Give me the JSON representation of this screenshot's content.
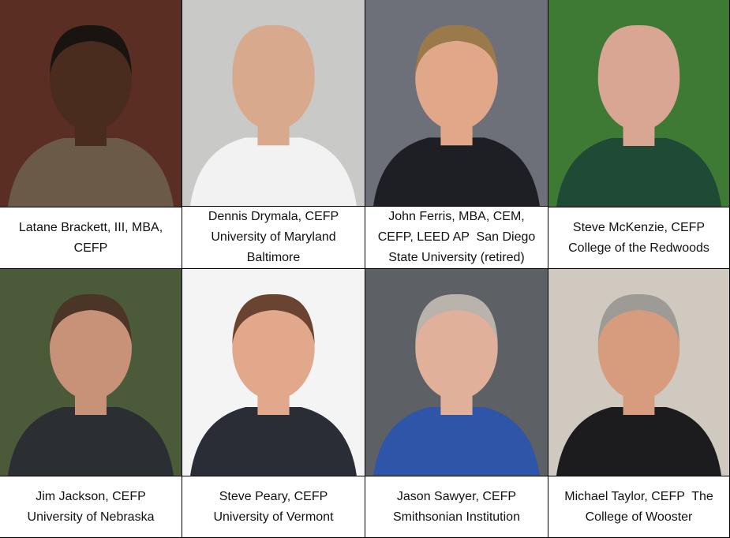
{
  "people": [
    {
      "caption": [
        "Latane Brackett, III, MBA,",
        "CEFP"
      ]
    },
    {
      "caption": [
        "Dennis Drymala, CEFP",
        "University of Maryland",
        "Baltimore"
      ]
    },
    {
      "caption": [
        "John Ferris, MBA, CEM,",
        "CEFP, LEED AP  San Diego",
        "State University (retired)"
      ]
    },
    {
      "caption": [
        "Steve McKenzie, CEFP",
        "College of the Redwoods"
      ]
    },
    {
      "caption": [
        "Jim Jackson, CEFP",
        "University of Nebraska"
      ]
    },
    {
      "caption": [
        "Steve Peary, CEFP",
        "University of Vermont"
      ]
    },
    {
      "caption": [
        "Jason Sawyer, CEFP",
        "Smithsonian Institution"
      ]
    },
    {
      "caption": [
        "Michael Taylor, CEFP  The",
        "College of Wooster"
      ]
    }
  ]
}
